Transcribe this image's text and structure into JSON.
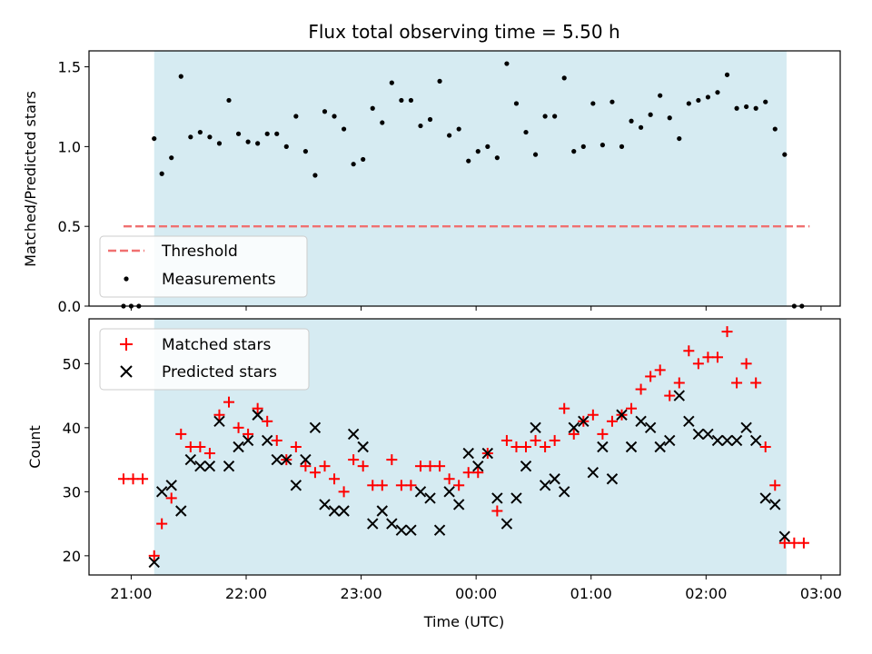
{
  "chart_data": [
    {
      "type": "scatter",
      "panel": "top",
      "title": "Flux total observing time = 5.50 h",
      "xlabel": "",
      "ylabel": "Matched/Predicted stars",
      "xlim": [
        "20:38",
        "03:10"
      ],
      "ylim": [
        0,
        1.6
      ],
      "yticks": [
        "0.0",
        "0.5",
        "1.0",
        "1.5"
      ],
      "observing_window": [
        "21:12",
        "02:42"
      ],
      "threshold": {
        "name": "Threshold",
        "value": 0.5,
        "x": [
          "20:56",
          "02:54"
        ],
        "color": "#f07070"
      },
      "legend": {
        "position": "lower-left",
        "entries": [
          "Threshold",
          "Measurements"
        ]
      },
      "series": [
        {
          "name": "Measurements",
          "color": "#000000",
          "x": [
            "20:56",
            "21:00",
            "21:04",
            "21:12",
            "21:16",
            "21:21",
            "21:26",
            "21:31",
            "21:36",
            "21:41",
            "21:46",
            "21:51",
            "21:56",
            "22:01",
            "22:06",
            "22:11",
            "22:16",
            "22:21",
            "22:26",
            "22:31",
            "22:36",
            "22:41",
            "22:46",
            "22:51",
            "22:56",
            "23:01",
            "23:06",
            "23:11",
            "23:16",
            "23:21",
            "23:26",
            "23:31",
            "23:36",
            "23:41",
            "23:46",
            "23:51",
            "23:56",
            "00:01",
            "00:06",
            "00:11",
            "00:16",
            "00:21",
            "00:26",
            "00:31",
            "00:36",
            "00:41",
            "00:46",
            "00:51",
            "00:56",
            "01:01",
            "01:06",
            "01:11",
            "01:16",
            "01:21",
            "01:26",
            "01:31",
            "01:36",
            "01:41",
            "01:46",
            "01:51",
            "01:56",
            "02:01",
            "02:06",
            "02:11",
            "02:16",
            "02:21",
            "02:26",
            "02:31",
            "02:36",
            "02:41",
            "02:46",
            "02:50"
          ],
          "y": [
            0.0,
            0.0,
            0.0,
            1.05,
            0.83,
            0.93,
            1.44,
            1.06,
            1.09,
            1.06,
            1.02,
            1.29,
            1.08,
            1.03,
            1.02,
            1.08,
            1.08,
            1.0,
            1.19,
            0.97,
            0.82,
            1.22,
            1.19,
            1.11,
            0.89,
            0.92,
            1.24,
            1.15,
            1.4,
            1.29,
            1.29,
            1.13,
            1.17,
            1.41,
            1.07,
            1.11,
            0.91,
            0.97,
            1.0,
            0.93,
            1.52,
            1.27,
            1.09,
            0.95,
            1.19,
            1.19,
            1.43,
            0.97,
            1.0,
            1.27,
            1.01,
            1.28,
            1.0,
            1.16,
            1.12,
            1.2,
            1.32,
            1.18,
            1.05,
            1.27,
            1.29,
            1.31,
            1.34,
            1.45,
            1.24,
            1.25,
            1.24,
            1.28,
            1.11,
            0.95,
            0.0,
            0.0
          ]
        }
      ]
    },
    {
      "type": "scatter",
      "panel": "bottom",
      "title": "",
      "xlabel": "Time (UTC)",
      "ylabel": "Count",
      "xlim": [
        "20:38",
        "03:10"
      ],
      "ylim": [
        17,
        57
      ],
      "yticks": [
        "20",
        "30",
        "40",
        "50"
      ],
      "xticks": [
        "21:00",
        "22:00",
        "23:00",
        "00:00",
        "01:00",
        "02:00",
        "03:00"
      ],
      "observing_window": [
        "21:12",
        "02:42"
      ],
      "legend": {
        "position": "upper-left",
        "entries": [
          "Matched stars",
          "Predicted stars"
        ]
      },
      "series": [
        {
          "name": "Matched stars",
          "color": "#ff0000",
          "marker": "plus",
          "x": [
            "20:56",
            "21:01",
            "21:06",
            "21:12",
            "21:16",
            "21:21",
            "21:26",
            "21:31",
            "21:36",
            "21:41",
            "21:46",
            "21:51",
            "21:56",
            "22:01",
            "22:06",
            "22:11",
            "22:16",
            "22:21",
            "22:26",
            "22:31",
            "22:36",
            "22:41",
            "22:46",
            "22:51",
            "22:56",
            "23:01",
            "23:06",
            "23:11",
            "23:16",
            "23:21",
            "23:26",
            "23:31",
            "23:36",
            "23:41",
            "23:46",
            "23:51",
            "23:56",
            "00:01",
            "00:06",
            "00:11",
            "00:16",
            "00:21",
            "00:26",
            "00:31",
            "00:36",
            "00:41",
            "00:46",
            "00:51",
            "00:56",
            "01:01",
            "01:06",
            "01:11",
            "01:16",
            "01:21",
            "01:26",
            "01:31",
            "01:36",
            "01:41",
            "01:46",
            "01:51",
            "01:56",
            "02:01",
            "02:06",
            "02:11",
            "02:16",
            "02:21",
            "02:26",
            "02:31",
            "02:36",
            "02:41",
            "02:46",
            "02:51"
          ],
          "y": [
            32,
            32,
            32,
            20,
            25,
            29,
            39,
            37,
            37,
            36,
            42,
            44,
            40,
            39,
            43,
            41,
            38,
            35,
            37,
            34,
            33,
            34,
            32,
            30,
            35,
            34,
            31,
            31,
            35,
            31,
            31,
            34,
            34,
            34,
            32,
            31,
            33,
            33,
            36,
            27,
            38,
            37,
            37,
            38,
            37,
            38,
            43,
            39,
            41,
            42,
            39,
            41,
            42,
            43,
            46,
            48,
            49,
            45,
            47,
            52,
            50,
            51,
            51,
            55,
            47,
            50,
            47,
            37,
            31,
            22,
            22,
            22
          ]
        },
        {
          "name": "Predicted stars",
          "color": "#000000",
          "marker": "x",
          "x": [
            "21:12",
            "21:16",
            "21:21",
            "21:26",
            "21:31",
            "21:36",
            "21:41",
            "21:46",
            "21:51",
            "21:56",
            "22:01",
            "22:06",
            "22:11",
            "22:16",
            "22:21",
            "22:26",
            "22:31",
            "22:36",
            "22:41",
            "22:46",
            "22:51",
            "22:56",
            "23:01",
            "23:06",
            "23:11",
            "23:16",
            "23:21",
            "23:26",
            "23:31",
            "23:36",
            "23:41",
            "23:46",
            "23:51",
            "23:56",
            "00:01",
            "00:06",
            "00:11",
            "00:16",
            "00:21",
            "00:26",
            "00:31",
            "00:36",
            "00:41",
            "00:46",
            "00:51",
            "00:56",
            "01:01",
            "01:06",
            "01:11",
            "01:16",
            "01:21",
            "01:26",
            "01:31",
            "01:36",
            "01:41",
            "01:46",
            "01:51",
            "01:56",
            "02:01",
            "02:06",
            "02:11",
            "02:16",
            "02:21",
            "02:26",
            "02:31",
            "02:36",
            "02:41"
          ],
          "y": [
            19,
            30,
            31,
            27,
            35,
            34,
            34,
            41,
            34,
            37,
            38,
            42,
            38,
            35,
            35,
            31,
            35,
            40,
            28,
            27,
            27,
            39,
            37,
            25,
            27,
            25,
            24,
            24,
            30,
            29,
            24,
            30,
            28,
            36,
            34,
            36,
            29,
            25,
            29,
            34,
            40,
            31,
            32,
            30,
            40,
            41,
            33,
            37,
            32,
            42,
            37,
            41,
            40,
            37,
            38,
            45,
            41,
            39,
            39,
            38,
            38,
            38,
            40,
            38,
            29,
            28,
            23
          ]
        }
      ]
    }
  ]
}
